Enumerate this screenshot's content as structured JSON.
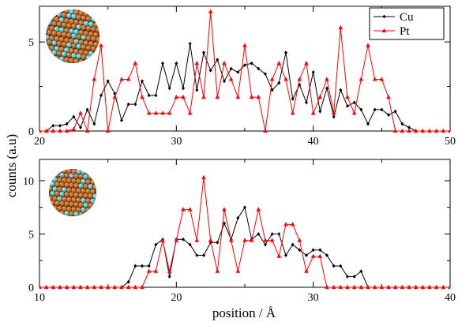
{
  "chart_data": [
    {
      "type": "line",
      "xlim": [
        20,
        50
      ],
      "ylim": [
        0,
        7
      ],
      "xticks": [
        20,
        30,
        40,
        50
      ],
      "yticks": [
        0,
        5
      ],
      "inset": "cuboctahedral Cu–Pt nanoparticle image (orange Cu, cyan Pt)",
      "legend": {
        "placement": "top-right",
        "entries": [
          "Cu",
          "Pt"
        ]
      },
      "series": [
        {
          "name": "Cu",
          "color": "#000000",
          "marker": "diamond",
          "x": [
            20,
            20.5,
            21,
            21.5,
            22,
            22.5,
            23,
            23.5,
            24,
            24.5,
            25,
            25.5,
            26,
            26.5,
            27,
            27.5,
            28,
            28.5,
            29,
            29.5,
            30,
            30.5,
            31,
            31.5,
            32,
            32.5,
            33,
            33.5,
            34,
            34.5,
            35,
            35.5,
            36,
            36.5,
            37,
            37.5,
            38,
            38.5,
            39,
            39.5,
            40,
            40.5,
            41,
            41.5,
            42,
            42.5,
            43,
            43.5,
            44,
            44.5,
            45,
            45.5,
            46,
            46.5,
            47,
            47.5,
            48
          ],
          "y": [
            0,
            0,
            0.3,
            0.3,
            0.4,
            0.8,
            0.2,
            1.2,
            0.4,
            2,
            2.8,
            2.1,
            0.6,
            1.5,
            1.5,
            2.8,
            2,
            2,
            3.8,
            2.4,
            3.8,
            2.4,
            4.9,
            2.3,
            4.4,
            3.4,
            4,
            2.8,
            3.5,
            3.3,
            3.7,
            3.8,
            3.5,
            3.2,
            2.3,
            2.7,
            4.4,
            1.8,
            2.6,
            1.6,
            3.3,
            1.1,
            2.4,
            0.8,
            2.3,
            1.4,
            1.6,
            1.2,
            0.4,
            1.2,
            1.2,
            0.9,
            1.1,
            0.4,
            0.2,
            0,
            0
          ]
        },
        {
          "name": "Pt",
          "color": "#ff0000",
          "marker": "triangle",
          "x": [
            20,
            20.5,
            21,
            21.5,
            22,
            22.5,
            23,
            23.5,
            24,
            24.5,
            25,
            25.5,
            26,
            26.5,
            27,
            27.5,
            28,
            28.5,
            29,
            29.5,
            30,
            30.5,
            31,
            31.5,
            32,
            32.5,
            33,
            33.5,
            34,
            34.5,
            35,
            35.5,
            36,
            36.5,
            37,
            37.5,
            38,
            38.5,
            39,
            39.5,
            40,
            40.5,
            41,
            41.5,
            42,
            42.5,
            43,
            43.5,
            44,
            44.5,
            45,
            45.5,
            46,
            46.5,
            47,
            47.5,
            48,
            48.5,
            49,
            49.5,
            50
          ],
          "y": [
            0,
            0,
            0,
            0,
            0,
            0.1,
            1,
            0,
            2.9,
            4.8,
            0,
            1.9,
            2.9,
            2.9,
            3.8,
            1.9,
            1,
            1,
            1,
            1,
            1.9,
            1.9,
            1,
            3.8,
            1.9,
            6.7,
            1.9,
            3.8,
            2.9,
            1.9,
            4.8,
            1.9,
            1.9,
            0,
            2.9,
            3.8,
            2.9,
            1,
            2.9,
            3.8,
            1,
            1.9,
            2.9,
            1,
            5.8,
            1.9,
            1,
            2.9,
            4.8,
            2.9,
            2.9,
            1.9,
            0,
            0,
            0,
            0,
            0,
            0,
            0,
            0,
            0
          ]
        }
      ]
    },
    {
      "type": "line",
      "xlim": [
        10,
        40
      ],
      "ylim": [
        0,
        12
      ],
      "xticks": [
        10,
        20,
        30,
        40
      ],
      "yticks": [
        0,
        5,
        10
      ],
      "xlabel": "position / Å",
      "inset": "spherical Cu–Pt nanoparticle image (orange Cu, cyan Pt)",
      "series": [
        {
          "name": "Cu",
          "color": "#000000",
          "marker": "diamond",
          "x": [
            10,
            10.5,
            11,
            11.5,
            12,
            12.5,
            13,
            13.5,
            14,
            14.5,
            15,
            15.5,
            16,
            16.5,
            17,
            17.5,
            18,
            18.5,
            19,
            19.5,
            20,
            20.5,
            21,
            21.5,
            22,
            22.5,
            23,
            23.5,
            24,
            24.5,
            25,
            25.5,
            26,
            26.5,
            27,
            27.5,
            28,
            28.5,
            29,
            29.5,
            30,
            30.5,
            31,
            31.5,
            32,
            32.5,
            33,
            33.5,
            34,
            34.5,
            35,
            35.5,
            36,
            36.5,
            37,
            37.5,
            38,
            38.5,
            39,
            39.5,
            40
          ],
          "y": [
            0,
            0,
            0,
            0,
            0,
            0,
            0,
            0,
            0,
            0,
            0,
            0,
            0,
            0.5,
            2,
            2,
            2,
            4,
            4.5,
            1,
            4.5,
            4.5,
            4,
            3,
            3,
            4.2,
            4.2,
            6,
            4.5,
            6.5,
            7.5,
            4.5,
            5,
            4,
            5,
            5,
            3,
            4,
            3.5,
            3,
            3.5,
            3.5,
            3,
            2,
            2,
            1,
            1,
            1.5,
            0,
            0,
            0,
            0,
            0,
            0,
            0,
            0,
            0,
            0,
            0,
            0,
            0
          ]
        },
        {
          "name": "Pt",
          "color": "#ff0000",
          "marker": "triangle",
          "x": [
            10,
            10.5,
            11,
            11.5,
            12,
            12.5,
            13,
            13.5,
            14,
            14.5,
            15,
            15.5,
            16,
            16.5,
            17,
            17.5,
            18,
            18.5,
            19,
            19.5,
            20,
            20.5,
            21,
            21.5,
            22,
            22.5,
            23,
            23.5,
            24,
            24.5,
            25,
            25.5,
            26,
            26.5,
            27,
            27.5,
            28,
            28.5,
            29,
            29.5,
            30,
            30.5,
            31,
            31.5,
            32,
            32.5,
            33,
            33.5,
            34,
            34.5,
            35,
            35.5,
            36,
            36.5,
            37,
            37.5,
            38,
            38.5,
            39,
            39.5,
            40
          ],
          "y": [
            0,
            0,
            0,
            0,
            0,
            0,
            0,
            0,
            0,
            0,
            0,
            0,
            0,
            0,
            0,
            0,
            1.5,
            1.5,
            4.4,
            1.5,
            4.4,
            7.3,
            7.3,
            4.4,
            10.3,
            4.4,
            1.5,
            7.3,
            4.4,
            1.5,
            4.4,
            4.4,
            7.3,
            4.4,
            4.4,
            2.9,
            5.9,
            5.9,
            4.4,
            1.5,
            2.9,
            2.9,
            0,
            0,
            0,
            0,
            0,
            0,
            0,
            0,
            0,
            0,
            0,
            0,
            0,
            0,
            0,
            0,
            0,
            0,
            0
          ]
        }
      ]
    }
  ],
  "ylabel": "counts (a.u)"
}
